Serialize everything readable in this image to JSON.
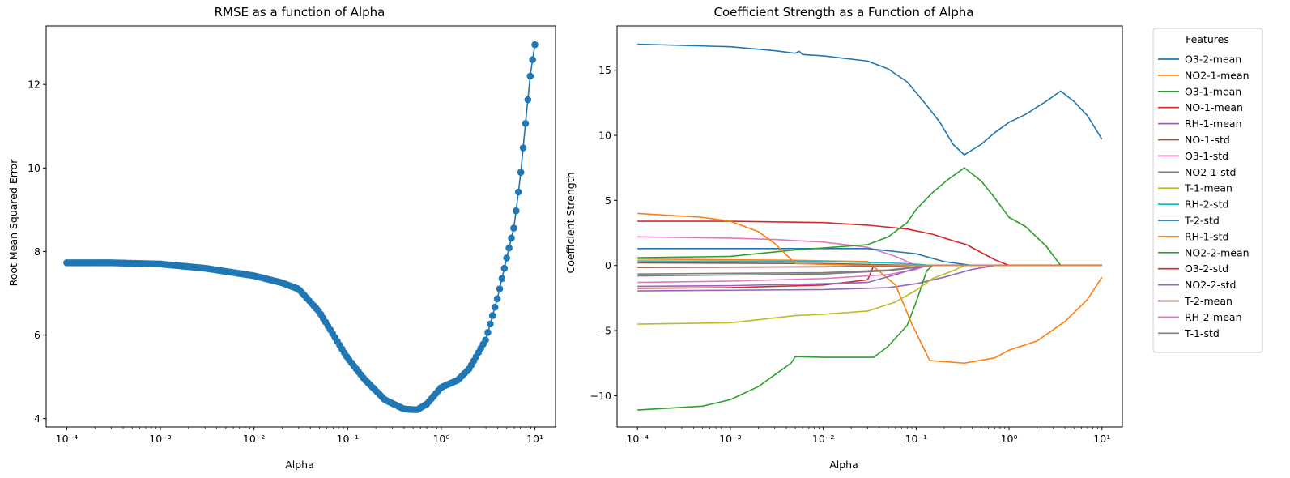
{
  "chart_data": [
    {
      "type": "line",
      "title": "RMSE as a function of Alpha",
      "xlabel": "Alpha",
      "ylabel": "Root Mean Squared Error",
      "xscale": "log",
      "xlim": [
        0.0001,
        10
      ],
      "ylim": [
        3.8,
        13.4
      ],
      "xticks": [
        0.0001,
        0.001,
        0.01,
        0.1,
        1,
        10
      ],
      "xtick_labels": [
        "10⁻⁴",
        "10⁻³",
        "10⁻²",
        "10⁻¹",
        "10⁰",
        "10¹"
      ],
      "yticks": [
        4,
        6,
        8,
        10,
        12
      ],
      "ytick_labels": [
        "4",
        "6",
        "8",
        "10",
        "12"
      ],
      "grid": false,
      "markers": true,
      "color": "#1f77b4",
      "anchors": [
        [
          0.0001,
          7.73
        ],
        [
          0.0003,
          7.73
        ],
        [
          0.001,
          7.7
        ],
        [
          0.003,
          7.6
        ],
        [
          0.01,
          7.42
        ],
        [
          0.02,
          7.25
        ],
        [
          0.03,
          7.1
        ],
        [
          0.05,
          6.55
        ],
        [
          0.08,
          5.8
        ],
        [
          0.1,
          5.45
        ],
        [
          0.15,
          4.95
        ],
        [
          0.25,
          4.45
        ],
        [
          0.4,
          4.23
        ],
        [
          0.55,
          4.21
        ],
        [
          0.7,
          4.35
        ],
        [
          1.0,
          4.75
        ],
        [
          1.5,
          4.92
        ],
        [
          2.0,
          5.2
        ],
        [
          3.0,
          5.9
        ],
        [
          4.0,
          6.9
        ],
        [
          5.0,
          7.85
        ],
        [
          6.0,
          8.6
        ],
        [
          7.0,
          9.8
        ],
        [
          8.0,
          11.15
        ],
        [
          9.0,
          12.3
        ],
        [
          10.0,
          12.95
        ]
      ]
    },
    {
      "type": "line",
      "title": "Coefficient Strength as a Function of Alpha",
      "xlabel": "Alpha",
      "ylabel": "Coefficient Strength",
      "xscale": "log",
      "xlim": [
        0.0001,
        10
      ],
      "ylim": [
        -12.4,
        18.4
      ],
      "xticks": [
        0.0001,
        0.001,
        0.01,
        0.1,
        1,
        10
      ],
      "xtick_labels": [
        "10⁻⁴",
        "10⁻³",
        "10⁻²",
        "10⁻¹",
        "10⁰",
        "10¹"
      ],
      "yticks": [
        -10,
        -5,
        0,
        5,
        10,
        15
      ],
      "ytick_labels": [
        "−10",
        "−5",
        "0",
        "5",
        "10",
        "15"
      ],
      "grid": false,
      "legend": {
        "title": "Features",
        "placement": "outside-right"
      },
      "series": [
        {
          "name": "O3-2-mean",
          "color": "#1f77b4",
          "points": [
            [
              0.0001,
              17.0
            ],
            [
              0.001,
              16.8
            ],
            [
              0.003,
              16.5
            ],
            [
              0.005,
              16.3
            ],
            [
              0.0055,
              16.45
            ],
            [
              0.006,
              16.2
            ],
            [
              0.01,
              16.1
            ],
            [
              0.03,
              15.7
            ],
            [
              0.05,
              15.1
            ],
            [
              0.08,
              14.1
            ],
            [
              0.12,
              12.6
            ],
            [
              0.18,
              11.0
            ],
            [
              0.25,
              9.3
            ],
            [
              0.33,
              8.5
            ],
            [
              0.5,
              9.3
            ],
            [
              0.7,
              10.2
            ],
            [
              1.0,
              11.0
            ],
            [
              1.5,
              11.6
            ],
            [
              2.5,
              12.6
            ],
            [
              3.6,
              13.4
            ],
            [
              5.0,
              12.6
            ],
            [
              7.0,
              11.5
            ],
            [
              10.0,
              9.7
            ]
          ]
        },
        {
          "name": "NO2-1-mean",
          "color": "#ff7f0e",
          "points": [
            [
              0.0001,
              4.0
            ],
            [
              0.0005,
              3.7
            ],
            [
              0.001,
              3.4
            ],
            [
              0.002,
              2.6
            ],
            [
              0.003,
              1.7
            ],
            [
              0.005,
              0.15
            ],
            [
              0.03,
              0.0
            ],
            [
              10.0,
              0.0
            ]
          ]
        },
        {
          "name": "O3-1-mean",
          "color": "#2ca02c",
          "points": [
            [
              0.0001,
              0.6
            ],
            [
              0.001,
              0.7
            ],
            [
              0.005,
              1.2
            ],
            [
              0.01,
              1.35
            ],
            [
              0.03,
              1.6
            ],
            [
              0.05,
              2.2
            ],
            [
              0.08,
              3.3
            ],
            [
              0.1,
              4.3
            ],
            [
              0.15,
              5.6
            ],
            [
              0.22,
              6.6
            ],
            [
              0.33,
              7.5
            ],
            [
              0.5,
              6.5
            ],
            [
              0.7,
              5.2
            ],
            [
              1.0,
              3.7
            ],
            [
              1.5,
              3.0
            ],
            [
              2.5,
              1.5
            ],
            [
              3.6,
              0.0
            ],
            [
              10.0,
              0.0
            ]
          ]
        },
        {
          "name": "NO-1-mean",
          "color": "#d62728",
          "points": [
            [
              0.0001,
              3.4
            ],
            [
              0.001,
              3.4
            ],
            [
              0.01,
              3.3
            ],
            [
              0.03,
              3.1
            ],
            [
              0.08,
              2.8
            ],
            [
              0.15,
              2.4
            ],
            [
              0.25,
              1.9
            ],
            [
              0.35,
              1.6
            ],
            [
              0.5,
              1.0
            ],
            [
              0.7,
              0.45
            ],
            [
              1.0,
              0.0
            ],
            [
              10.0,
              0.0
            ]
          ]
        },
        {
          "name": "RH-1-mean",
          "color": "#9467bd",
          "points": [
            [
              0.0001,
              -1.6
            ],
            [
              0.001,
              -1.55
            ],
            [
              0.01,
              -1.4
            ],
            [
              0.03,
              -1.3
            ],
            [
              0.06,
              -0.7
            ],
            [
              0.1,
              -0.2
            ],
            [
              0.14,
              0.0
            ],
            [
              10.0,
              0.0
            ]
          ]
        },
        {
          "name": "NO-1-std",
          "color": "#8c564b",
          "points": [
            [
              0.0001,
              -0.15
            ],
            [
              0.01,
              -0.1
            ],
            [
              0.05,
              -0.05
            ],
            [
              0.1,
              0.0
            ],
            [
              10.0,
              0.0
            ]
          ]
        },
        {
          "name": "O3-1-std",
          "color": "#e377c2",
          "points": [
            [
              0.0001,
              -1.3
            ],
            [
              0.001,
              -1.2
            ],
            [
              0.01,
              -1.0
            ],
            [
              0.05,
              -0.7
            ],
            [
              0.1,
              -0.3
            ],
            [
              0.13,
              0.0
            ],
            [
              10.0,
              0.0
            ]
          ]
        },
        {
          "name": "NO2-1-std",
          "color": "#7f7f7f",
          "points": [
            [
              0.0001,
              -0.65
            ],
            [
              0.01,
              -0.55
            ],
            [
              0.05,
              -0.35
            ],
            [
              0.1,
              -0.1
            ],
            [
              0.14,
              0.0
            ],
            [
              10.0,
              0.0
            ]
          ]
        },
        {
          "name": "T-1-mean",
          "color": "#bcbd22",
          "points": [
            [
              0.0001,
              -4.5
            ],
            [
              0.001,
              -4.4
            ],
            [
              0.005,
              -3.85
            ],
            [
              0.01,
              -3.75
            ],
            [
              0.03,
              -3.5
            ],
            [
              0.06,
              -2.8
            ],
            [
              0.1,
              -1.9
            ],
            [
              0.15,
              -1.0
            ],
            [
              0.25,
              -0.4
            ],
            [
              0.33,
              0.0
            ],
            [
              10.0,
              0.0
            ]
          ]
        },
        {
          "name": "RH-2-std",
          "color": "#17becf",
          "points": [
            [
              0.0001,
              0.35
            ],
            [
              0.01,
              0.3
            ],
            [
              0.05,
              0.2
            ],
            [
              0.1,
              0.1
            ],
            [
              0.15,
              0.0
            ],
            [
              10.0,
              0.0
            ]
          ]
        },
        {
          "name": "T-2-std",
          "color": "#1f77b4",
          "points": [
            [
              0.0001,
              1.3
            ],
            [
              0.001,
              1.3
            ],
            [
              0.01,
              1.3
            ],
            [
              0.03,
              1.3
            ],
            [
              0.1,
              0.9
            ],
            [
              0.2,
              0.3
            ],
            [
              0.4,
              0.0
            ],
            [
              10.0,
              0.0
            ]
          ]
        },
        {
          "name": "RH-1-std",
          "color": "#ff7f0e",
          "points": [
            [
              0.0001,
              0.5
            ],
            [
              0.005,
              0.4
            ],
            [
              0.03,
              0.3
            ],
            [
              0.06,
              -1.5
            ],
            [
              0.09,
              -4.5
            ],
            [
              0.14,
              -7.3
            ],
            [
              0.33,
              -7.5
            ],
            [
              0.7,
              -7.1
            ],
            [
              1.0,
              -6.5
            ],
            [
              2.0,
              -5.8
            ],
            [
              4.0,
              -4.3
            ],
            [
              7.0,
              -2.6
            ],
            [
              10.0,
              -0.9
            ]
          ]
        },
        {
          "name": "NO2-2-mean",
          "color": "#2ca02c",
          "points": [
            [
              0.0001,
              -11.1
            ],
            [
              0.0005,
              -10.8
            ],
            [
              0.001,
              -10.3
            ],
            [
              0.002,
              -9.3
            ],
            [
              0.003,
              -8.4
            ],
            [
              0.0045,
              -7.5
            ],
            [
              0.005,
              -7.0
            ],
            [
              0.01,
              -7.05
            ],
            [
              0.035,
              -7.05
            ],
            [
              0.05,
              -6.2
            ],
            [
              0.08,
              -4.6
            ],
            [
              0.1,
              -2.8
            ],
            [
              0.13,
              -0.4
            ],
            [
              0.15,
              0.0
            ],
            [
              10.0,
              0.0
            ]
          ]
        },
        {
          "name": "O3-2-std",
          "color": "#d62728",
          "points": [
            [
              0.0001,
              -1.75
            ],
            [
              0.001,
              -1.7
            ],
            [
              0.01,
              -1.5
            ],
            [
              0.03,
              -1.1
            ],
            [
              0.035,
              0.0
            ],
            [
              10.0,
              0.0
            ]
          ]
        },
        {
          "name": "NO2-2-std",
          "color": "#9467bd",
          "points": [
            [
              0.0001,
              -1.95
            ],
            [
              0.001,
              -1.9
            ],
            [
              0.01,
              -1.85
            ],
            [
              0.05,
              -1.7
            ],
            [
              0.1,
              -1.4
            ],
            [
              0.2,
              -0.9
            ],
            [
              0.4,
              -0.3
            ],
            [
              0.7,
              0.0
            ],
            [
              10.0,
              0.0
            ]
          ]
        },
        {
          "name": "T-2-mean",
          "color": "#8c564b",
          "points": [
            [
              0.0001,
              0.2
            ],
            [
              0.01,
              0.15
            ],
            [
              0.05,
              0.05
            ],
            [
              0.1,
              0.0
            ],
            [
              10.0,
              0.0
            ]
          ]
        },
        {
          "name": "RH-2-mean",
          "color": "#e377c2",
          "points": [
            [
              0.0001,
              2.2
            ],
            [
              0.001,
              2.1
            ],
            [
              0.003,
              2.0
            ],
            [
              0.01,
              1.8
            ],
            [
              0.03,
              1.4
            ],
            [
              0.06,
              0.7
            ],
            [
              0.1,
              0.0
            ],
            [
              10.0,
              0.0
            ]
          ]
        },
        {
          "name": "T-1-std",
          "color": "#7f7f7f",
          "points": [
            [
              0.0001,
              -0.8
            ],
            [
              0.01,
              -0.65
            ],
            [
              0.05,
              -0.4
            ],
            [
              0.1,
              -0.15
            ],
            [
              0.15,
              0.0
            ],
            [
              10.0,
              0.0
            ]
          ]
        }
      ]
    }
  ]
}
